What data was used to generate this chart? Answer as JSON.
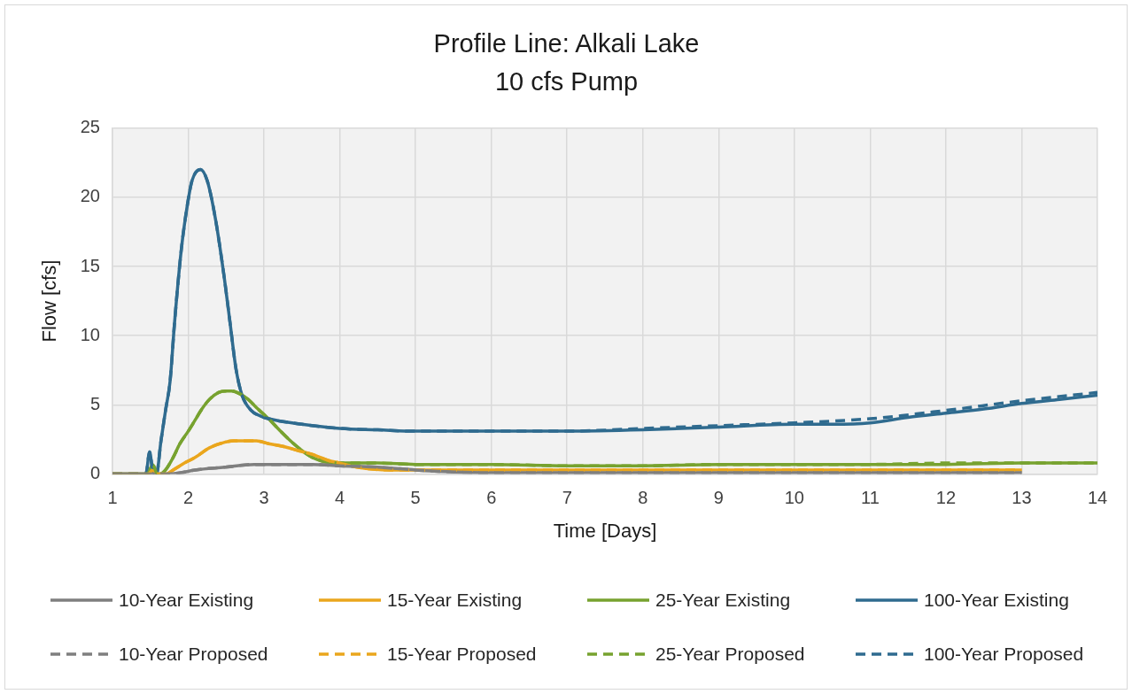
{
  "chart_data": {
    "type": "line",
    "title": "Profile Line: Alkali Lake",
    "subtitle": "10 cfs Pump",
    "xlabel": "Time [Days]",
    "ylabel": "Flow [cfs]",
    "xlim": [
      1,
      14
    ],
    "xticks": [
      1,
      2,
      3,
      4,
      5,
      6,
      7,
      8,
      9,
      10,
      11,
      12,
      13,
      14
    ],
    "ylim": [
      0,
      25
    ],
    "yticks": [
      0,
      5,
      10,
      15,
      20,
      25
    ],
    "grid": true,
    "legend": "bottom",
    "series": [
      {
        "name": "10-Year Existing",
        "color": "#7f7f7f",
        "line_style": "solid",
        "x": [
          1,
          1.7,
          1.9,
          2.09,
          2.48,
          2.87,
          3.26,
          3.64,
          4,
          4.5,
          5,
          5.3,
          6,
          7,
          8,
          9,
          10,
          11,
          12,
          13
        ],
        "values": [
          0,
          0,
          0.1,
          0.3,
          0.5,
          0.7,
          0.7,
          0.7,
          0.6,
          0.5,
          0.3,
          0.2,
          0.1,
          0.1,
          0.1,
          0.1,
          0.1,
          0.1,
          0.1,
          0.1
        ]
      },
      {
        "name": "15-Year Existing",
        "color": "#eaa61d",
        "line_style": "solid",
        "x": [
          1,
          1.47,
          1.53,
          1.58,
          1.7,
          1.8,
          1.95,
          2.09,
          2.28,
          2.48,
          2.6,
          2.75,
          2.9,
          3.06,
          3.25,
          3.45,
          3.65,
          3.84,
          4,
          4.23,
          4.66,
          5,
          6,
          7,
          8,
          9,
          10,
          11,
          12,
          13
        ],
        "values": [
          0,
          0,
          0.3,
          0,
          0,
          0.3,
          0.8,
          1.2,
          1.9,
          2.3,
          2.4,
          2.4,
          2.4,
          2.2,
          2,
          1.7,
          1.4,
          1,
          0.8,
          0.5,
          0.3,
          0.3,
          0.3,
          0.3,
          0.3,
          0.3,
          0.3,
          0.3,
          0.3,
          0.3
        ]
      },
      {
        "name": "25-Year Existing",
        "color": "#77a22f",
        "line_style": "solid",
        "x": [
          1,
          1.46,
          1.53,
          1.58,
          1.62,
          1.7,
          1.8,
          1.89,
          2,
          2.09,
          2.18,
          2.28,
          2.4,
          2.5,
          2.57,
          2.68,
          2.79,
          2.92,
          3.06,
          3.2,
          3.33,
          3.5,
          3.64,
          3.8,
          4,
          4.5,
          5,
          6,
          7,
          8,
          9,
          10,
          11,
          12,
          13,
          14
        ],
        "values": [
          0,
          0,
          0.7,
          0.1,
          0,
          0.3,
          1.2,
          2.2,
          3.1,
          3.9,
          4.7,
          5.4,
          5.9,
          6,
          6,
          5.8,
          5.4,
          4.7,
          4,
          3.2,
          2.5,
          1.7,
          1.2,
          0.9,
          0.8,
          0.8,
          0.7,
          0.7,
          0.6,
          0.6,
          0.7,
          0.7,
          0.7,
          0.7,
          0.8,
          0.8
        ]
      },
      {
        "name": "100-Year Existing",
        "color": "#2f6b8f",
        "line_style": "solid",
        "x": [
          1,
          1.44,
          1.49,
          1.53,
          1.58,
          1.64,
          1.7,
          1.76,
          1.82,
          1.91,
          1.99,
          2.05,
          2.16,
          2.25,
          2.36,
          2.48,
          2.55,
          2.63,
          2.71,
          2.83,
          2.95,
          3.06,
          3.5,
          4,
          4.5,
          5,
          6,
          7,
          8,
          9,
          10,
          10.5,
          11,
          11.5,
          12,
          12.5,
          13,
          13.5,
          14
        ],
        "values": [
          0,
          0,
          1.6,
          0.3,
          0,
          2.4,
          4.6,
          6.7,
          11,
          16.3,
          19.5,
          21.2,
          22,
          21.2,
          18.4,
          14,
          11,
          7.6,
          5.7,
          4.6,
          4.2,
          4,
          3.6,
          3.3,
          3.2,
          3.1,
          3.1,
          3.1,
          3.2,
          3.4,
          3.6,
          3.6,
          3.7,
          4.1,
          4.4,
          4.7,
          5.1,
          5.4,
          5.7
        ]
      },
      {
        "name": "10-Year Proposed",
        "color": "#7f7f7f",
        "line_style": "dashed",
        "x": [
          1,
          1.7,
          1.9,
          2.09,
          2.48,
          2.87,
          3.26,
          3.64,
          4,
          4.5,
          5,
          5.3,
          6,
          7,
          8,
          9,
          10,
          11,
          12,
          13
        ],
        "values": [
          0,
          0,
          0.1,
          0.3,
          0.5,
          0.7,
          0.7,
          0.7,
          0.6,
          0.5,
          0.3,
          0.2,
          0.1,
          0.1,
          0.1,
          0.1,
          0.1,
          0.1,
          0.1,
          0.1
        ]
      },
      {
        "name": "15-Year Proposed",
        "color": "#eaa61d",
        "line_style": "dashed",
        "x": [
          1,
          1.47,
          1.53,
          1.58,
          1.7,
          1.8,
          1.95,
          2.09,
          2.28,
          2.48,
          2.6,
          2.75,
          2.9,
          3.06,
          3.25,
          3.45,
          3.65,
          3.84,
          4,
          4.23,
          4.66,
          5,
          6,
          7,
          8,
          9,
          10,
          11,
          12,
          13
        ],
        "values": [
          0,
          0,
          0.3,
          0,
          0,
          0.3,
          0.8,
          1.2,
          1.9,
          2.3,
          2.4,
          2.4,
          2.4,
          2.2,
          2,
          1.7,
          1.4,
          1,
          0.8,
          0.5,
          0.3,
          0.3,
          0.3,
          0.3,
          0.3,
          0.3,
          0.3,
          0.3,
          0.3,
          0.3
        ]
      },
      {
        "name": "25-Year Proposed",
        "color": "#77a22f",
        "line_style": "dashed",
        "x": [
          1,
          1.46,
          1.53,
          1.58,
          1.62,
          1.7,
          1.8,
          1.89,
          2,
          2.09,
          2.18,
          2.28,
          2.4,
          2.5,
          2.57,
          2.68,
          2.79,
          2.92,
          3.06,
          3.2,
          3.33,
          3.5,
          3.64,
          3.8,
          4,
          4.5,
          5,
          6,
          7,
          8,
          9,
          10,
          11,
          12,
          13,
          14
        ],
        "values": [
          0,
          0,
          0.7,
          0.1,
          0,
          0.3,
          1.2,
          2.2,
          3.1,
          3.9,
          4.7,
          5.4,
          5.9,
          6,
          6,
          5.8,
          5.4,
          4.7,
          4,
          3.2,
          2.5,
          1.7,
          1.2,
          0.9,
          0.8,
          0.8,
          0.7,
          0.7,
          0.6,
          0.6,
          0.7,
          0.7,
          0.7,
          0.8,
          0.8,
          0.8
        ]
      },
      {
        "name": "100-Year Proposed",
        "color": "#2f6b8f",
        "line_style": "dashed",
        "x": [
          1,
          1.44,
          1.49,
          1.53,
          1.58,
          1.64,
          1.7,
          1.76,
          1.82,
          1.91,
          1.99,
          2.05,
          2.16,
          2.25,
          2.36,
          2.48,
          2.55,
          2.63,
          2.71,
          2.83,
          2.95,
          3.06,
          3.5,
          4,
          4.5,
          5,
          6,
          7,
          8,
          9,
          10,
          11,
          12,
          13,
          14
        ],
        "values": [
          0,
          0,
          1.6,
          0.3,
          0,
          2.4,
          4.6,
          6.7,
          11,
          16.3,
          19.5,
          21.2,
          22,
          21.2,
          18.4,
          14,
          11,
          7.6,
          5.7,
          4.6,
          4.2,
          4,
          3.6,
          3.3,
          3.2,
          3.1,
          3.1,
          3.1,
          3.3,
          3.5,
          3.7,
          4,
          4.6,
          5.3,
          5.9
        ]
      }
    ]
  }
}
